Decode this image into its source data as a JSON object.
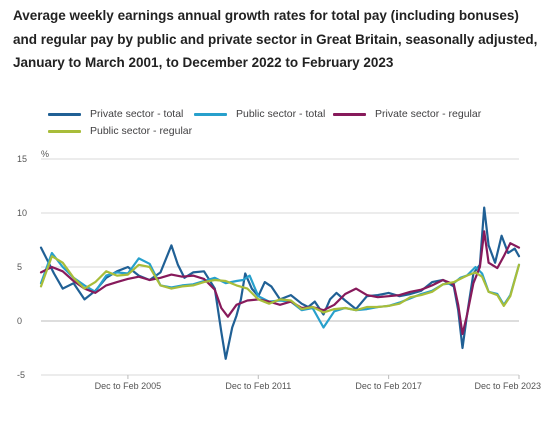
{
  "title": "Average weekly earnings annual growth rates for total pay (including bonuses) and regular pay by public and private sector in Great Britain, seasonally adjusted, January to March 2001, to December 2022 to February 2023",
  "chart_data": {
    "type": "line",
    "title": "Average weekly earnings annual growth rates for total pay (including bonuses) and regular pay by public and private sector in Great Britain, seasonally adjusted, January to March 2001, to December 2022 to February 2023",
    "ylabel": "%",
    "xlabel": "",
    "ylim": [
      -5,
      15
    ],
    "yticks": [
      "15",
      "10",
      "5",
      "0",
      "-5"
    ],
    "xlim": [
      2001.0,
      2023.0
    ],
    "xticks": [
      {
        "label": "Dec to Feb 2005",
        "x": 2005.0
      },
      {
        "label": "Dec to Feb 2011",
        "x": 2011.0
      },
      {
        "label": "Dec to Feb 2017",
        "x": 2017.0
      },
      {
        "label": "Dec to Feb 2023",
        "x": 2023.0
      }
    ],
    "grid": true,
    "legend_position": "top",
    "series": [
      {
        "name": "Private sector - total",
        "color": "#206095",
        "x": [
          2001.0,
          2001.3,
          2001.6,
          2002.0,
          2002.5,
          2003.0,
          2003.5,
          2004.0,
          2004.5,
          2005.0,
          2005.5,
          2006.0,
          2006.5,
          2007.0,
          2007.3,
          2007.6,
          2008.0,
          2008.5,
          2009.0,
          2009.3,
          2009.5,
          2009.8,
          2010.0,
          2010.2,
          2010.4,
          2010.7,
          2011.0,
          2011.3,
          2011.6,
          2012.0,
          2012.5,
          2013.0,
          2013.3,
          2013.6,
          2014.0,
          2014.3,
          2014.6,
          2015.0,
          2015.5,
          2016.0,
          2016.5,
          2017.0,
          2017.5,
          2018.0,
          2018.5,
          2019.0,
          2019.5,
          2020.0,
          2020.2,
          2020.4,
          2020.6,
          2020.9,
          2021.2,
          2021.4,
          2021.6,
          2021.9,
          2022.2,
          2022.5,
          2022.8,
          2023.0
        ],
        "values": [
          6.8,
          5.6,
          4.4,
          3.0,
          3.5,
          2.0,
          2.8,
          4.0,
          4.6,
          5.0,
          4.2,
          3.8,
          4.5,
          7.0,
          5.2,
          4.0,
          4.5,
          4.6,
          3.0,
          -1.0,
          -3.5,
          -0.6,
          0.5,
          2.0,
          4.4,
          3.0,
          2.3,
          3.6,
          3.2,
          2.0,
          2.4,
          1.6,
          1.3,
          1.8,
          0.6,
          2.0,
          2.6,
          1.9,
          1.1,
          2.3,
          2.4,
          2.6,
          2.3,
          2.5,
          2.8,
          3.6,
          3.8,
          3.2,
          1.0,
          -2.5,
          0.5,
          4.4,
          5.2,
          10.5,
          7.0,
          5.4,
          7.9,
          6.3,
          6.7,
          6.0
        ]
      },
      {
        "name": "Public sector - total",
        "color": "#27a0cc",
        "x": [
          2001.0,
          2001.5,
          2002.0,
          2002.5,
          2003.0,
          2003.5,
          2004.0,
          2004.5,
          2005.0,
          2005.5,
          2006.0,
          2006.5,
          2007.0,
          2007.5,
          2008.0,
          2008.5,
          2009.0,
          2009.5,
          2010.0,
          2010.3,
          2010.6,
          2011.0,
          2011.5,
          2012.0,
          2012.5,
          2013.0,
          2013.5,
          2014.0,
          2014.5,
          2015.0,
          2015.5,
          2016.0,
          2016.5,
          2017.0,
          2017.5,
          2018.0,
          2018.5,
          2019.0,
          2019.5,
          2020.0,
          2020.3,
          2020.6,
          2021.0,
          2021.3,
          2021.6,
          2022.0,
          2022.3,
          2022.6,
          2023.0
        ],
        "values": [
          3.5,
          6.3,
          5.0,
          4.0,
          3.3,
          2.7,
          4.2,
          4.5,
          4.4,
          5.8,
          5.3,
          3.3,
          3.1,
          3.3,
          3.4,
          3.7,
          4.0,
          3.5,
          3.7,
          3.8,
          4.2,
          2.3,
          1.8,
          1.9,
          1.8,
          1.0,
          1.2,
          -0.6,
          0.9,
          1.2,
          1.0,
          1.1,
          1.3,
          1.4,
          1.7,
          2.1,
          2.5,
          2.8,
          3.4,
          3.5,
          4.0,
          4.2,
          5.0,
          4.4,
          2.7,
          2.5,
          1.5,
          2.4,
          5.2
        ]
      },
      {
        "name": "Private sector - regular",
        "color": "#871a5b",
        "x": [
          2001.0,
          2001.5,
          2002.0,
          2002.5,
          2003.0,
          2003.5,
          2004.0,
          2004.5,
          2005.0,
          2005.5,
          2006.0,
          2006.5,
          2007.0,
          2007.5,
          2008.0,
          2008.5,
          2009.0,
          2009.3,
          2009.6,
          2010.0,
          2010.5,
          2011.0,
          2011.5,
          2012.0,
          2012.5,
          2013.0,
          2013.5,
          2014.0,
          2014.5,
          2015.0,
          2015.5,
          2016.0,
          2016.5,
          2017.0,
          2017.5,
          2018.0,
          2018.5,
          2019.0,
          2019.5,
          2020.0,
          2020.2,
          2020.4,
          2020.6,
          2020.9,
          2021.2,
          2021.4,
          2021.6,
          2022.0,
          2022.3,
          2022.6,
          2023.0
        ],
        "values": [
          4.5,
          5.0,
          4.6,
          3.7,
          3.0,
          2.6,
          3.3,
          3.6,
          3.9,
          4.1,
          3.8,
          4.0,
          4.3,
          4.1,
          4.2,
          3.9,
          2.9,
          1.2,
          0.4,
          1.5,
          1.9,
          2.0,
          1.8,
          1.5,
          1.8,
          1.2,
          1.3,
          1.0,
          1.5,
          2.5,
          3.0,
          2.4,
          2.2,
          2.3,
          2.4,
          2.7,
          2.9,
          3.3,
          3.8,
          3.4,
          1.5,
          -1.2,
          0.5,
          3.5,
          5.0,
          8.3,
          5.4,
          4.9,
          6.0,
          7.2,
          6.8
        ]
      },
      {
        "name": "Public sector - regular",
        "color": "#a8bd3a",
        "x": [
          2001.0,
          2001.5,
          2002.0,
          2002.5,
          2003.0,
          2003.5,
          2004.0,
          2004.5,
          2005.0,
          2005.5,
          2006.0,
          2006.5,
          2007.0,
          2007.5,
          2008.0,
          2008.5,
          2009.0,
          2009.5,
          2010.0,
          2010.5,
          2011.0,
          2011.5,
          2012.0,
          2012.5,
          2013.0,
          2013.5,
          2014.0,
          2014.5,
          2015.0,
          2015.5,
          2016.0,
          2016.5,
          2017.0,
          2017.5,
          2018.0,
          2018.5,
          2019.0,
          2019.5,
          2020.0,
          2020.3,
          2020.6,
          2021.0,
          2021.3,
          2021.6,
          2022.0,
          2022.3,
          2022.6,
          2023.0
        ],
        "values": [
          3.2,
          6.0,
          5.4,
          4.0,
          3.0,
          3.6,
          4.6,
          4.2,
          4.3,
          5.2,
          5.0,
          3.3,
          3.0,
          3.2,
          3.3,
          3.6,
          3.8,
          3.7,
          3.3,
          3.0,
          2.0,
          1.6,
          2.0,
          1.9,
          1.1,
          1.3,
          0.8,
          1.1,
          1.2,
          1.0,
          1.3,
          1.3,
          1.4,
          1.6,
          2.2,
          2.4,
          2.7,
          3.4,
          3.6,
          3.9,
          4.2,
          4.5,
          4.1,
          2.7,
          2.4,
          1.4,
          2.3,
          5.2
        ]
      }
    ]
  }
}
